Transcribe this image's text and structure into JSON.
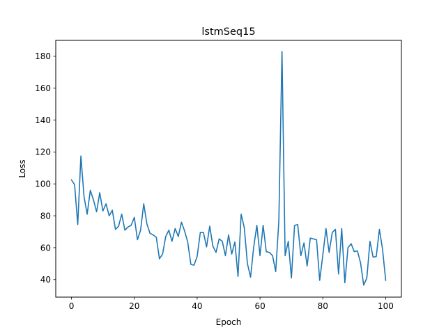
{
  "chart_data": {
    "type": "line",
    "title": "lstmSeq15",
    "xlabel": "Epoch",
    "ylabel": "Loss",
    "xlim": [
      -5,
      105
    ],
    "ylim": [
      29,
      190
    ],
    "xticks": [
      0,
      20,
      40,
      60,
      80,
      100
    ],
    "yticks": [
      40,
      60,
      80,
      100,
      120,
      140,
      160,
      180
    ],
    "grid": false,
    "legend": "none",
    "series": [
      {
        "color": "#1f77b4",
        "x": [
          0,
          1,
          2,
          3,
          4,
          5,
          6,
          7,
          8,
          9,
          10,
          11,
          12,
          13,
          14,
          15,
          16,
          17,
          18,
          19,
          20,
          21,
          22,
          23,
          24,
          25,
          26,
          27,
          28,
          29,
          30,
          31,
          32,
          33,
          34,
          35,
          36,
          37,
          38,
          39,
          40,
          41,
          42,
          43,
          44,
          45,
          46,
          47,
          48,
          49,
          50,
          51,
          52,
          53,
          54,
          55,
          56,
          57,
          58,
          59,
          60,
          61,
          62,
          63,
          64,
          65,
          66,
          67,
          68,
          69,
          70,
          71,
          72,
          73,
          74,
          75,
          76,
          77,
          78,
          79,
          80,
          81,
          82,
          83,
          84,
          85,
          86,
          87,
          88,
          89,
          90,
          91,
          92,
          93,
          94,
          95,
          96,
          97,
          98,
          99,
          100
        ],
        "values": [
          102.5,
          99.5,
          74.5,
          117.5,
          92,
          81,
          96,
          90,
          82.5,
          94.5,
          83,
          87.5,
          80,
          83.5,
          71.5,
          73.5,
          81,
          71,
          73,
          74,
          79,
          65,
          71,
          87.5,
          75,
          69,
          68,
          66.5,
          53,
          56,
          67,
          71,
          64,
          72,
          67,
          76,
          70.5,
          63.5,
          49.5,
          49,
          54.5,
          69.5,
          69.5,
          60.5,
          73.5,
          61,
          57,
          65.5,
          64,
          55,
          68,
          56,
          63.5,
          42,
          81,
          72.5,
          50,
          41.5,
          60.5,
          74,
          55,
          74,
          57.5,
          57,
          55,
          45,
          77,
          183,
          55,
          64,
          41,
          74,
          74.5,
          55,
          63,
          48.5,
          66,
          65.5,
          65,
          39.5,
          55.5,
          72,
          57,
          69.5,
          71.5,
          43.5,
          72,
          38,
          60,
          62.5,
          57.5,
          58,
          50.5,
          36.5,
          41,
          64,
          54,
          54.5,
          71.5,
          59,
          39.5
        ]
      }
    ]
  }
}
